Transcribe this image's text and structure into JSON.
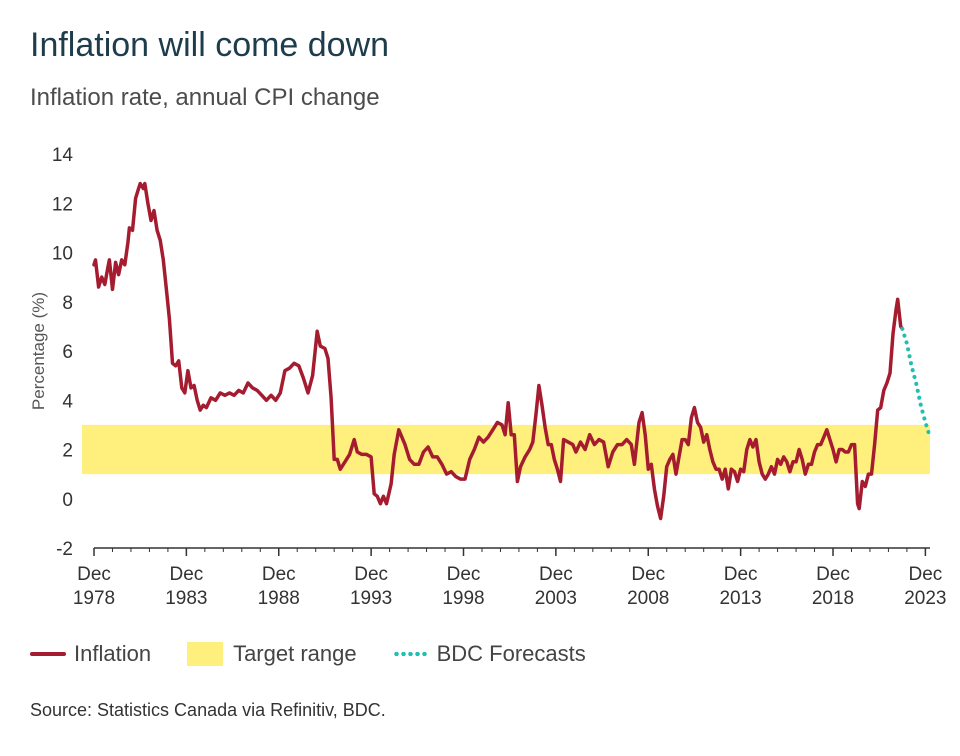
{
  "chart_data": {
    "type": "line",
    "title": "Inflation will come down",
    "subtitle": "Inflation rate, annual CPI change",
    "ylabel": "Percentage (%)",
    "xlabel": "",
    "ylim": [
      -2,
      14
    ],
    "yticks": [
      -2,
      0,
      2,
      4,
      6,
      8,
      10,
      12,
      14
    ],
    "xlim": [
      "1978-12",
      "2024-03"
    ],
    "xticks": [
      {
        "date": "1978-12",
        "line1": "Dec",
        "line2": "1978"
      },
      {
        "date": "1983-12",
        "line1": "Dec",
        "line2": "1983"
      },
      {
        "date": "1988-12",
        "line1": "Dec",
        "line2": "1988"
      },
      {
        "date": "1993-12",
        "line1": "Dec",
        "line2": "1993"
      },
      {
        "date": "1998-12",
        "line1": "Dec",
        "line2": "1998"
      },
      {
        "date": "2003-12",
        "line1": "Dec",
        "line2": "2003"
      },
      {
        "date": "2008-12",
        "line1": "Dec",
        "line2": "2008"
      },
      {
        "date": "2013-12",
        "line1": "Dec",
        "line2": "2013"
      },
      {
        "date": "2018-12",
        "line1": "Dec",
        "line2": "2018"
      },
      {
        "date": "2023-12",
        "line1": "Dec",
        "line2": "2023"
      }
    ],
    "grid": false,
    "legend_position": "bottom",
    "target_range": {
      "name": "Target range",
      "low": 1,
      "high": 3,
      "color": "#fff07d"
    },
    "series": [
      {
        "name": "Inflation",
        "style": "solid",
        "color": "#a51c30",
        "points": [
          [
            "1978-12",
            9.5
          ],
          [
            "1979-01",
            9.7
          ],
          [
            "1979-03",
            8.6
          ],
          [
            "1979-05",
            9.0
          ],
          [
            "1979-07",
            8.7
          ],
          [
            "1979-09",
            9.4
          ],
          [
            "1979-10",
            9.7
          ],
          [
            "1979-12",
            8.5
          ],
          [
            "1980-02",
            9.6
          ],
          [
            "1980-04",
            9.1
          ],
          [
            "1980-06",
            9.7
          ],
          [
            "1980-08",
            9.5
          ],
          [
            "1980-10",
            10.4
          ],
          [
            "1980-11",
            11.0
          ],
          [
            "1981-01",
            10.9
          ],
          [
            "1981-03",
            12.2
          ],
          [
            "1981-05",
            12.6
          ],
          [
            "1981-06",
            12.8
          ],
          [
            "1981-08",
            12.6
          ],
          [
            "1981-09",
            12.8
          ],
          [
            "1981-11",
            12.0
          ],
          [
            "1982-01",
            11.3
          ],
          [
            "1982-03",
            11.7
          ],
          [
            "1982-05",
            10.9
          ],
          [
            "1982-07",
            10.5
          ],
          [
            "1982-09",
            9.7
          ],
          [
            "1982-11",
            8.5
          ],
          [
            "1983-01",
            7.3
          ],
          [
            "1983-03",
            5.5
          ],
          [
            "1983-05",
            5.4
          ],
          [
            "1983-07",
            5.6
          ],
          [
            "1983-09",
            4.5
          ],
          [
            "1983-11",
            4.3
          ],
          [
            "1984-01",
            5.2
          ],
          [
            "1984-03",
            4.5
          ],
          [
            "1984-05",
            4.6
          ],
          [
            "1984-07",
            4.0
          ],
          [
            "1984-09",
            3.6
          ],
          [
            "1984-11",
            3.8
          ],
          [
            "1985-01",
            3.7
          ],
          [
            "1985-04",
            4.1
          ],
          [
            "1985-07",
            4.0
          ],
          [
            "1985-10",
            4.3
          ],
          [
            "1986-01",
            4.2
          ],
          [
            "1986-04",
            4.3
          ],
          [
            "1986-07",
            4.2
          ],
          [
            "1986-10",
            4.4
          ],
          [
            "1987-01",
            4.3
          ],
          [
            "1987-04",
            4.7
          ],
          [
            "1987-07",
            4.5
          ],
          [
            "1987-10",
            4.4
          ],
          [
            "1988-01",
            4.2
          ],
          [
            "1988-04",
            4.0
          ],
          [
            "1988-07",
            4.2
          ],
          [
            "1988-10",
            4.0
          ],
          [
            "1989-01",
            4.3
          ],
          [
            "1989-04",
            5.2
          ],
          [
            "1989-07",
            5.3
          ],
          [
            "1989-10",
            5.5
          ],
          [
            "1990-01",
            5.4
          ],
          [
            "1990-04",
            4.9
          ],
          [
            "1990-07",
            4.3
          ],
          [
            "1990-10",
            5.0
          ],
          [
            "1991-01",
            6.8
          ],
          [
            "1991-03",
            6.2
          ],
          [
            "1991-06",
            6.1
          ],
          [
            "1991-08",
            5.7
          ],
          [
            "1991-10",
            4.1
          ],
          [
            "1991-12",
            1.6
          ],
          [
            "1992-02",
            1.6
          ],
          [
            "1992-04",
            1.2
          ],
          [
            "1992-07",
            1.5
          ],
          [
            "1992-10",
            1.8
          ],
          [
            "1993-01",
            2.4
          ],
          [
            "1993-03",
            1.9
          ],
          [
            "1993-06",
            1.8
          ],
          [
            "1993-09",
            1.8
          ],
          [
            "1993-12",
            1.7
          ],
          [
            "1994-02",
            0.2
          ],
          [
            "1994-04",
            0.1
          ],
          [
            "1994-06",
            -0.2
          ],
          [
            "1994-08",
            0.1
          ],
          [
            "1994-10",
            -0.2
          ],
          [
            "1995-01",
            0.6
          ],
          [
            "1995-03",
            1.8
          ],
          [
            "1995-06",
            2.8
          ],
          [
            "1995-08",
            2.5
          ],
          [
            "1995-10",
            2.2
          ],
          [
            "1996-01",
            1.6
          ],
          [
            "1996-04",
            1.4
          ],
          [
            "1996-07",
            1.4
          ],
          [
            "1996-10",
            1.9
          ],
          [
            "1997-01",
            2.1
          ],
          [
            "1997-04",
            1.7
          ],
          [
            "1997-07",
            1.7
          ],
          [
            "1997-10",
            1.4
          ],
          [
            "1998-01",
            1.0
          ],
          [
            "1998-04",
            1.1
          ],
          [
            "1998-07",
            0.9
          ],
          [
            "1998-10",
            0.8
          ],
          [
            "1999-01",
            0.8
          ],
          [
            "1999-04",
            1.6
          ],
          [
            "1999-07",
            2.0
          ],
          [
            "1999-10",
            2.5
          ],
          [
            "2000-01",
            2.3
          ],
          [
            "2000-04",
            2.5
          ],
          [
            "2000-07",
            2.8
          ],
          [
            "2000-10",
            3.1
          ],
          [
            "2001-01",
            3.0
          ],
          [
            "2001-03",
            2.6
          ],
          [
            "2001-05",
            3.9
          ],
          [
            "2001-07",
            2.6
          ],
          [
            "2001-09",
            2.6
          ],
          [
            "2001-11",
            0.7
          ],
          [
            "2002-01",
            1.3
          ],
          [
            "2002-04",
            1.7
          ],
          [
            "2002-07",
            2.0
          ],
          [
            "2002-09",
            2.3
          ],
          [
            "2002-11",
            3.4
          ],
          [
            "2003-01",
            4.6
          ],
          [
            "2003-03",
            3.8
          ],
          [
            "2003-05",
            2.9
          ],
          [
            "2003-07",
            2.2
          ],
          [
            "2003-09",
            2.2
          ],
          [
            "2003-11",
            1.6
          ],
          [
            "2004-01",
            1.2
          ],
          [
            "2004-03",
            0.7
          ],
          [
            "2004-05",
            2.4
          ],
          [
            "2004-08",
            2.3
          ],
          [
            "2004-11",
            2.2
          ],
          [
            "2005-01",
            1.9
          ],
          [
            "2005-04",
            2.3
          ],
          [
            "2005-07",
            2.0
          ],
          [
            "2005-10",
            2.6
          ],
          [
            "2006-01",
            2.2
          ],
          [
            "2006-04",
            2.4
          ],
          [
            "2006-07",
            2.3
          ],
          [
            "2006-10",
            1.3
          ],
          [
            "2007-01",
            1.9
          ],
          [
            "2007-04",
            2.2
          ],
          [
            "2007-07",
            2.2
          ],
          [
            "2007-10",
            2.4
          ],
          [
            "2008-01",
            2.2
          ],
          [
            "2008-03",
            1.4
          ],
          [
            "2008-06",
            3.1
          ],
          [
            "2008-08",
            3.5
          ],
          [
            "2008-10",
            2.6
          ],
          [
            "2008-12",
            1.2
          ],
          [
            "2009-02",
            1.4
          ],
          [
            "2009-04",
            0.4
          ],
          [
            "2009-06",
            -0.3
          ],
          [
            "2009-08",
            -0.8
          ],
          [
            "2009-10",
            0.1
          ],
          [
            "2009-12",
            1.3
          ],
          [
            "2010-02",
            1.6
          ],
          [
            "2010-04",
            1.8
          ],
          [
            "2010-06",
            1.0
          ],
          [
            "2010-08",
            1.7
          ],
          [
            "2010-10",
            2.4
          ],
          [
            "2010-12",
            2.4
          ],
          [
            "2011-02",
            2.2
          ],
          [
            "2011-04",
            3.3
          ],
          [
            "2011-06",
            3.7
          ],
          [
            "2011-08",
            3.1
          ],
          [
            "2011-10",
            2.9
          ],
          [
            "2011-12",
            2.3
          ],
          [
            "2012-02",
            2.6
          ],
          [
            "2012-04",
            2.0
          ],
          [
            "2012-06",
            1.5
          ],
          [
            "2012-08",
            1.2
          ],
          [
            "2012-10",
            1.2
          ],
          [
            "2012-12",
            0.8
          ],
          [
            "2013-02",
            1.2
          ],
          [
            "2013-04",
            0.4
          ],
          [
            "2013-06",
            1.2
          ],
          [
            "2013-08",
            1.1
          ],
          [
            "2013-10",
            0.7
          ],
          [
            "2013-12",
            1.2
          ],
          [
            "2014-02",
            1.1
          ],
          [
            "2014-04",
            2.0
          ],
          [
            "2014-06",
            2.4
          ],
          [
            "2014-08",
            2.1
          ],
          [
            "2014-10",
            2.4
          ],
          [
            "2014-12",
            1.5
          ],
          [
            "2015-02",
            1.0
          ],
          [
            "2015-04",
            0.8
          ],
          [
            "2015-06",
            1.0
          ],
          [
            "2015-08",
            1.3
          ],
          [
            "2015-10",
            1.0
          ],
          [
            "2015-12",
            1.6
          ],
          [
            "2016-02",
            1.4
          ],
          [
            "2016-04",
            1.7
          ],
          [
            "2016-06",
            1.5
          ],
          [
            "2016-08",
            1.1
          ],
          [
            "2016-10",
            1.5
          ],
          [
            "2016-12",
            1.5
          ],
          [
            "2017-02",
            2.0
          ],
          [
            "2017-04",
            1.6
          ],
          [
            "2017-06",
            1.0
          ],
          [
            "2017-08",
            1.4
          ],
          [
            "2017-10",
            1.4
          ],
          [
            "2017-12",
            1.9
          ],
          [
            "2018-02",
            2.2
          ],
          [
            "2018-04",
            2.2
          ],
          [
            "2018-06",
            2.5
          ],
          [
            "2018-08",
            2.8
          ],
          [
            "2018-10",
            2.4
          ],
          [
            "2018-12",
            2.0
          ],
          [
            "2019-02",
            1.5
          ],
          [
            "2019-04",
            2.0
          ],
          [
            "2019-06",
            2.0
          ],
          [
            "2019-08",
            1.9
          ],
          [
            "2019-10",
            1.9
          ],
          [
            "2019-12",
            2.2
          ],
          [
            "2020-02",
            2.2
          ],
          [
            "2020-04",
            -0.2
          ],
          [
            "2020-05",
            -0.4
          ],
          [
            "2020-07",
            0.7
          ],
          [
            "2020-09",
            0.5
          ],
          [
            "2020-11",
            1.0
          ],
          [
            "2021-01",
            1.0
          ],
          [
            "2021-03",
            2.2
          ],
          [
            "2021-05",
            3.6
          ],
          [
            "2021-07",
            3.7
          ],
          [
            "2021-09",
            4.4
          ],
          [
            "2021-11",
            4.7
          ],
          [
            "2022-01",
            5.1
          ],
          [
            "2022-03",
            6.7
          ],
          [
            "2022-05",
            7.7
          ],
          [
            "2022-06",
            8.1
          ],
          [
            "2022-08",
            7.0
          ],
          [
            "2022-09",
            6.9
          ]
        ]
      },
      {
        "name": "BDC Forecasts",
        "style": "dotted",
        "color": "#1fbfb1",
        "points": [
          [
            "2022-09",
            6.9
          ],
          [
            "2022-12",
            6.3
          ],
          [
            "2023-03",
            5.4
          ],
          [
            "2023-06",
            4.7
          ],
          [
            "2023-09",
            3.8
          ],
          [
            "2023-12",
            3.1
          ],
          [
            "2024-03",
            2.5
          ]
        ]
      }
    ]
  },
  "legend": {
    "inflation": "Inflation",
    "target": "Target range",
    "forecast": "BDC Forecasts"
  },
  "source": "Source: Statistics Canada via Refinitiv, BDC."
}
